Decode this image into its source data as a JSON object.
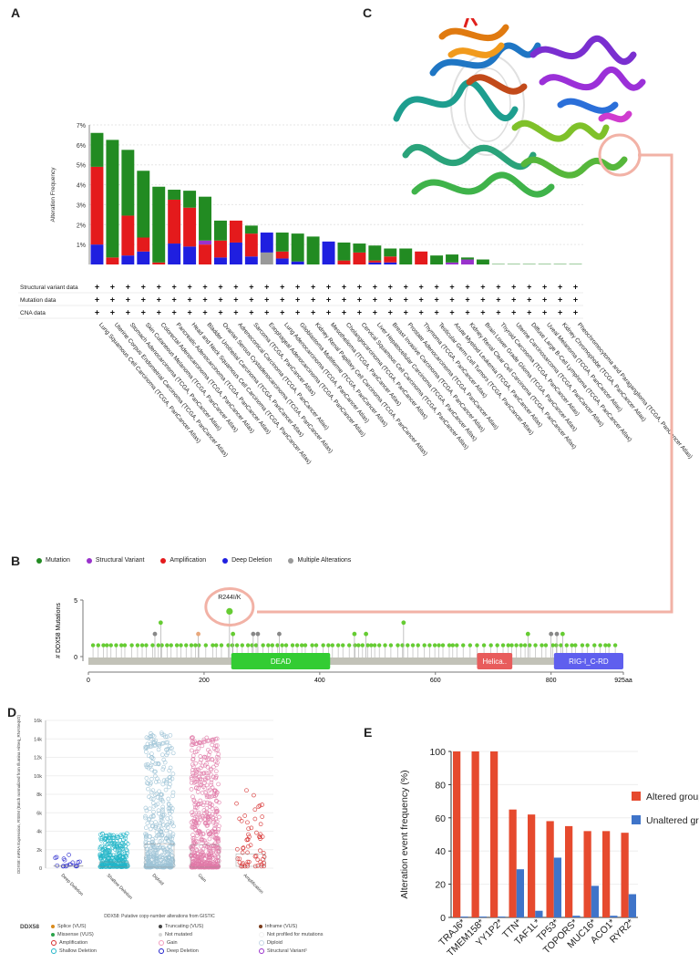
{
  "panels": {
    "a": "A",
    "b": "B",
    "c": "C",
    "d": "D",
    "e": "E"
  },
  "colors": {
    "mutation": "#228b22",
    "structural_variant": "#9932cc",
    "amplification": "#e41a1c",
    "deep_deletion": "#1f1fe0",
    "multiple": "#999999",
    "altered": "#e64a2e",
    "unaltered": "#3f74c9",
    "lollipop_green": "#66cc33",
    "salmon": "#f2b2a6"
  },
  "chart_data": [
    {
      "type": "bar",
      "panel": "A",
      "ylabel": "Alteration Frequency",
      "ylim": [
        0,
        7
      ],
      "yticks": [
        "7%",
        "6%",
        "5%",
        "4%",
        "3%",
        "2%",
        "1%"
      ],
      "track_labels": [
        "Structural variant data",
        "Mutation data",
        "CNA data"
      ],
      "categories": [
        "Lung Squamous Cell Carcinoma (TCGA, PanCancer Atlas)",
        "Uterine Corpus Endometrial Carcinoma (TCGA, PanCancer Atlas)",
        "Stomach Adenocarcinoma (TCGA, PanCancer Atlas)",
        "Skin Cutaneous Melanoma (TCGA, PanCancer Atlas)",
        "Colorectal Adenocarcinoma (TCGA, PanCancer Atlas)",
        "Pancreatic Adenocarcinoma (TCGA, PanCancer Atlas)",
        "Head and Neck Squamous Cell Carcinoma (TCGA, PanCancer Atlas)",
        "Bladder Urothelial Carcinoma (TCGA, PanCancer Atlas)",
        "Ovarian Serous Cystadenocarcinoma (TCGA, PanCancer Atlas)",
        "Adrenocortical Carcinoma (TCGA, PanCancer Atlas)",
        "Sarcoma (TCGA, PanCancer Atlas)",
        "Esophageal Adenocarcinoma (TCGA, PanCancer Atlas)",
        "Lung Adenocarcinoma (TCGA, PanCancer Atlas)",
        "Glioblastoma Multiforme (TCGA, PanCancer Atlas)",
        "Kidney Renal Papillary Cell Carcinoma (TCGA, PanCancer Atlas)",
        "Mesothelioma (TCGA, PanCancer Atlas)",
        "Cholangiocarcinoma (TCGA, PanCancer Atlas)",
        "Cervical Squamous Cell Carcinoma (TCGA, PanCancer Atlas)",
        "Liver Hepatocellular Carcinoma (TCGA, PanCancer Atlas)",
        "Breast Invasive Carcinoma (TCGA, PanCancer Atlas)",
        "Prostate Adenocarcinoma (TCGA, PanCancer Atlas)",
        "Thymoma (TCGA, PanCancer Atlas)",
        "Testicular Germ Cell Tumors (TCGA, PanCancer Atlas)",
        "Acute Myeloid Leukemia (TCGA, PanCancer Atlas)",
        "Kidney Renal Clear Cell Carcinoma (TCGA, PanCancer Atlas)",
        "Brain Lower Grade Glioma (TCGA, PanCancer Atlas)",
        "Thyroid Carcinoma (TCGA, PanCancer Atlas)",
        "Uterine Carcinosarcoma (TCGA, PanCancer Atlas)",
        "Diffuse Large B-Cell Lymphoma (TCGA, PanCancer Atlas)",
        "Uveal Melanoma (TCGA, PanCancer Atlas)",
        "Kidney Chromophobe (TCGA, PanCancer Atlas)",
        "Pheochromocytoma and Paraganglioma (TCGA, PanCancer Atlas)"
      ],
      "stacks": [
        {
          "deep_deletion": 1.0,
          "amplification": 3.9,
          "mutation": 1.7,
          "multiple": 0
        },
        {
          "deep_deletion": 0,
          "amplification": 0.35,
          "mutation": 5.9,
          "multiple": 0
        },
        {
          "deep_deletion": 0.45,
          "amplification": 2.0,
          "mutation": 3.3,
          "multiple": 0
        },
        {
          "deep_deletion": 0.65,
          "amplification": 0.7,
          "mutation": 3.35,
          "multiple": 0
        },
        {
          "deep_deletion": 0,
          "amplification": 0.1,
          "mutation": 3.8,
          "multiple": 0
        },
        {
          "deep_deletion": 1.05,
          "amplification": 2.2,
          "mutation": 0.5,
          "multiple": 0
        },
        {
          "deep_deletion": 0.9,
          "amplification": 1.95,
          "mutation": 0.85,
          "multiple": 0
        },
        {
          "deep_deletion": 0,
          "amplification": 1.0,
          "mutation": 2.2,
          "multiple": 0,
          "structural_variant": 0.2
        },
        {
          "deep_deletion": 0.35,
          "amplification": 0.85,
          "mutation": 1.0,
          "multiple": 0
        },
        {
          "deep_deletion": 1.1,
          "amplification": 1.1,
          "mutation": 0,
          "multiple": 0
        },
        {
          "deep_deletion": 0.4,
          "amplification": 1.15,
          "mutation": 0.4,
          "multiple": 0
        },
        {
          "deep_deletion": 0,
          "amplification": 0,
          "mutation": 0,
          "multiple": 0.6,
          "deep_deletion2": 1.0
        },
        {
          "deep_deletion": 0.3,
          "amplification": 0.35,
          "mutation": 0.95,
          "multiple": 0
        },
        {
          "deep_deletion": 0.15,
          "amplification": 0,
          "mutation": 1.4,
          "multiple": 0
        },
        {
          "deep_deletion": 0,
          "amplification": 0,
          "mutation": 1.4,
          "multiple": 0
        },
        {
          "deep_deletion": 1.15,
          "amplification": 0,
          "mutation": 0,
          "multiple": 0
        },
        {
          "deep_deletion": 0,
          "amplification": 0.2,
          "mutation": 0.9,
          "multiple": 0
        },
        {
          "deep_deletion": 0,
          "amplification": 0.6,
          "mutation": 0.45,
          "multiple": 0
        },
        {
          "deep_deletion": 0.1,
          "amplification": 0.1,
          "mutation": 0.75,
          "multiple": 0
        },
        {
          "deep_deletion": 0.1,
          "amplification": 0.3,
          "mutation": 0.4,
          "multiple": 0
        },
        {
          "deep_deletion": 0,
          "amplification": 0,
          "mutation": 0.8,
          "multiple": 0
        },
        {
          "deep_deletion": 0,
          "amplification": 0.65,
          "mutation": 0,
          "multiple": 0
        },
        {
          "deep_deletion": 0,
          "amplification": 0,
          "mutation": 0.45,
          "multiple": 0
        },
        {
          "deep_deletion": 0,
          "amplification": 0,
          "mutation": 0.4,
          "multiple": 0,
          "structural_variant": 0.1
        },
        {
          "deep_deletion": 0,
          "amplification": 0,
          "mutation": 0.1,
          "multiple": 0,
          "structural_variant": 0.25
        },
        {
          "deep_deletion": 0,
          "amplification": 0,
          "mutation": 0.25,
          "multiple": 0
        },
        {
          "deep_deletion": 0,
          "amplification": 0,
          "mutation": 0.02,
          "multiple": 0
        },
        {
          "deep_deletion": 0,
          "amplification": 0,
          "mutation": 0.02,
          "multiple": 0
        },
        {
          "deep_deletion": 0,
          "amplification": 0,
          "mutation": 0.02,
          "multiple": 0
        },
        {
          "deep_deletion": 0,
          "amplification": 0,
          "mutation": 0.02,
          "multiple": 0
        },
        {
          "deep_deletion": 0,
          "amplification": 0,
          "mutation": 0.02,
          "multiple": 0
        },
        {
          "deep_deletion": 0,
          "amplification": 0,
          "mutation": 0.02,
          "multiple": 0
        }
      ]
    },
    {
      "type": "lollipop",
      "panel": "B",
      "legend": [
        "Mutation",
        "Structural Variant",
        "Amplification",
        "Deep Deletion",
        "Multiple Alterations"
      ],
      "ylabel": "# DDX58 Mutations",
      "ylim": [
        0,
        5
      ],
      "yticks": [
        0,
        5
      ],
      "xticks": [
        "0",
        "200",
        "400",
        "600",
        "800",
        "925aa"
      ],
      "xlim": [
        0,
        925
      ],
      "annotation": "R244I/K",
      "domains": [
        {
          "name": "DEAD",
          "start": 247,
          "end": 418
        },
        {
          "name": "Helica..",
          "start": 672,
          "end": 733
        },
        {
          "name": "RIG-I_C-RD",
          "start": 805,
          "end": 925
        }
      ],
      "highlights": [
        {
          "pos": 244,
          "count": 4,
          "kind": "mutation"
        },
        {
          "pos": 125,
          "count": 3,
          "kind": "mutation"
        },
        {
          "pos": 545,
          "count": 3,
          "kind": "mutation"
        },
        {
          "pos": 115,
          "count": 2,
          "kind": "multiple"
        },
        {
          "pos": 190,
          "count": 2,
          "kind": "amplification"
        },
        {
          "pos": 250,
          "count": 2,
          "kind": "mutation"
        },
        {
          "pos": 285,
          "count": 2,
          "kind": "multiple"
        },
        {
          "pos": 293,
          "count": 2,
          "kind": "multiple"
        },
        {
          "pos": 330,
          "count": 2,
          "kind": "multiple"
        },
        {
          "pos": 460,
          "count": 2,
          "kind": "mutation"
        },
        {
          "pos": 480,
          "count": 2,
          "kind": "mutation"
        },
        {
          "pos": 760,
          "count": 2,
          "kind": "mutation"
        },
        {
          "pos": 800,
          "count": 2,
          "kind": "multiple"
        },
        {
          "pos": 810,
          "count": 2,
          "kind": "multiple"
        },
        {
          "pos": 820,
          "count": 2,
          "kind": "mutation"
        }
      ]
    },
    {
      "type": "scatter",
      "panel": "D",
      "ylabel": "DDX58: mRNA Expression, RSEM (Batch normalized from Illumina HiSeq_RNASeqV2)",
      "xlabel": "DDX58: Putative copy-number alterations from GISTIC",
      "yticks": [
        "16k",
        "14k",
        "12k",
        "10k",
        "8k",
        "6k",
        "4k",
        "2k",
        "0"
      ],
      "ylim": [
        0,
        16000
      ],
      "categories": [
        "Deep Deletion",
        "Shallow Deletion",
        "Diploid",
        "Gain",
        "Amplification"
      ],
      "spread": [
        [
          200,
          1600,
          18
        ],
        [
          150,
          3800,
          260
        ],
        [
          100,
          14700,
          420
        ],
        [
          100,
          14200,
          520
        ],
        [
          200,
          8600,
          60
        ]
      ],
      "legend_title": "DDX58",
      "legend": [
        "Splice (VUS)",
        "Truncating (VUS)",
        "Inframe (VUS)",
        "Missense (VUS)",
        "Not mutated",
        "Not profiled for mutations",
        "Amplification",
        "Gain",
        "Diploid",
        "Shallow Deletion",
        "Deep Deletion",
        "Structural Variant¹"
      ]
    },
    {
      "type": "bar",
      "panel": "E",
      "ylabel": "Alteration event frequency (%)",
      "ylim": [
        0,
        100
      ],
      "yticks": [
        0,
        20,
        40,
        60,
        80,
        100
      ],
      "categories": [
        "TRAJ6*",
        "TMEM158*",
        "YY1P2*",
        "TTN*",
        "TAF1L*",
        "TP53*",
        "TOPORS*",
        "MUC16*",
        "ACO1*",
        "RYR2*"
      ],
      "series": [
        {
          "name": "Altered group",
          "values": [
            100,
            100,
            100,
            65,
            62,
            58,
            55,
            52,
            52,
            51
          ]
        },
        {
          "name": "Unaltered group",
          "values": [
            0.5,
            0.5,
            0.5,
            29,
            4,
            36,
            1,
            19,
            1,
            14
          ]
        }
      ]
    }
  ]
}
